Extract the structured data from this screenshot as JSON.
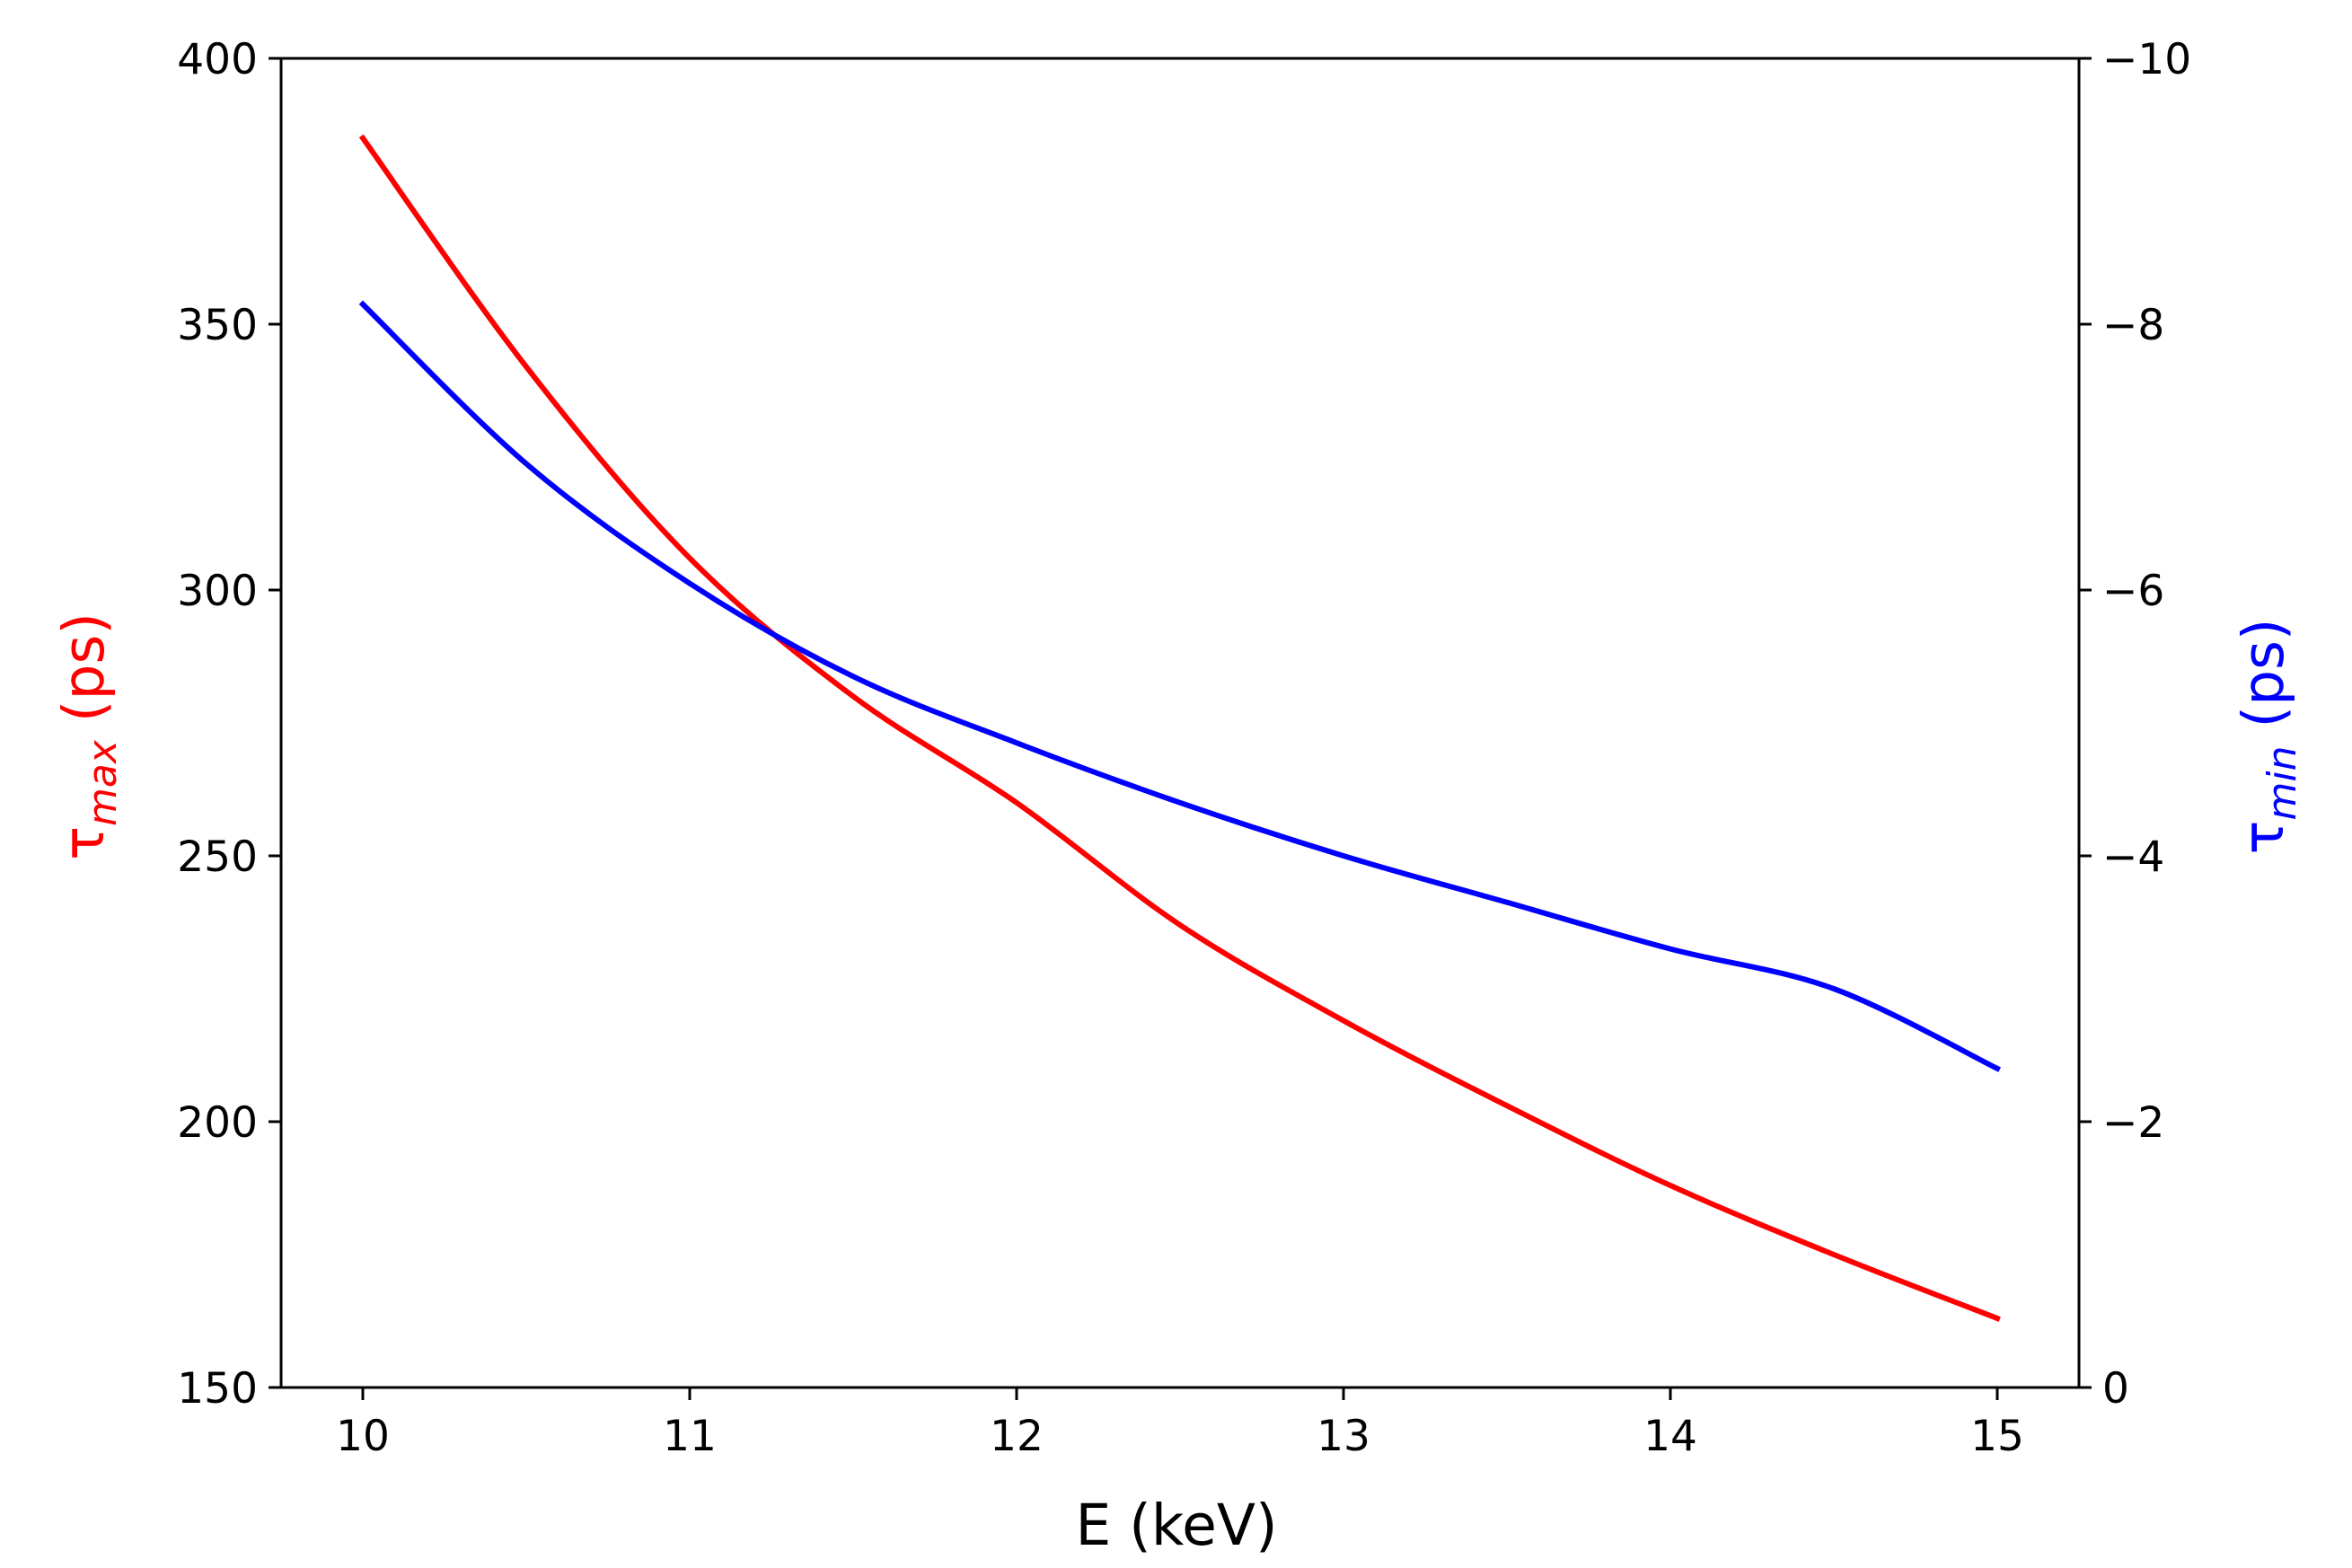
{
  "chart_data": {
    "type": "line",
    "title": "",
    "xlabel": "E (keV)",
    "ylabel_left": {
      "symbol": "τ",
      "subscript": "max",
      "unit": " (ps)",
      "color": "#ff0000"
    },
    "ylabel_right": {
      "symbol": "τ",
      "subscript": "min",
      "unit": " (ps)",
      "color": "#0000ff"
    },
    "xlim": [
      9.75,
      15.25
    ],
    "ylim_left": [
      150,
      400
    ],
    "ylim_right": [
      0,
      -10
    ],
    "xticks": [
      {
        "value": 10,
        "label": "10"
      },
      {
        "value": 11,
        "label": "11"
      },
      {
        "value": 12,
        "label": "12"
      },
      {
        "value": 13,
        "label": "13"
      },
      {
        "value": 14,
        "label": "14"
      },
      {
        "value": 15,
        "label": "15"
      }
    ],
    "yticks_left": [
      {
        "value": 150,
        "label": "150"
      },
      {
        "value": 200,
        "label": "200"
      },
      {
        "value": 250,
        "label": "250"
      },
      {
        "value": 300,
        "label": "300"
      },
      {
        "value": 350,
        "label": "350"
      },
      {
        "value": 400,
        "label": "400"
      }
    ],
    "yticks_right": [
      {
        "value": 0,
        "label": "0"
      },
      {
        "value": -2,
        "label": "−2"
      },
      {
        "value": -4,
        "label": "−4"
      },
      {
        "value": -6,
        "label": "−6"
      },
      {
        "value": -8,
        "label": "−8"
      },
      {
        "value": -10,
        "label": "−10"
      }
    ],
    "grid": false,
    "series": [
      {
        "name": "tau_max",
        "axis": "left",
        "color": "#ff0000",
        "x": [
          10,
          10.5,
          11,
          11.5,
          12,
          12.5,
          13,
          13.5,
          14,
          14.5,
          15
        ],
        "y": [
          385,
          342,
          306,
          280,
          260,
          237,
          219,
          203,
          188,
          175,
          163
        ]
      },
      {
        "name": "tau_min",
        "axis": "right",
        "color": "#0000ff",
        "x": [
          10,
          10.5,
          11,
          11.5,
          12,
          12.5,
          13,
          13.5,
          14,
          14.5,
          15
        ],
        "y": [
          -8.15,
          -6.95,
          -6.05,
          -5.35,
          -4.85,
          -4.4,
          -4.0,
          -3.65,
          -3.3,
          -3.0,
          -2.4
        ]
      }
    ]
  }
}
